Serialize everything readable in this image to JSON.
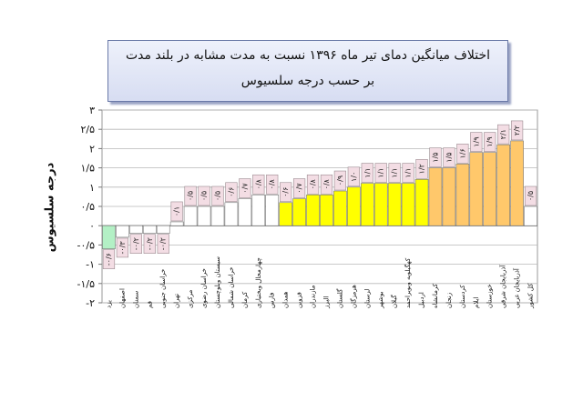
{
  "chart_data": {
    "type": "bar",
    "title": "اختلاف میانگین دمای تیر ماه ۱۳۹۶ نسبت به مدت مشابه در بلند مدت",
    "subtitle": "بر حسب درجه سلسیوس",
    "ylabel": "درجه سلسیوس",
    "xlabel": "",
    "ylim": [
      -2,
      3
    ],
    "y_ticks": [
      "-۲",
      "-۱/۵",
      "-۱",
      "-۰/۵",
      "۰",
      "۰/۵",
      "۱",
      "۱/۵",
      "۲",
      "۲/۵",
      "۳"
    ],
    "grid": true,
    "categories": [
      "یزد",
      "اصفهان",
      "سمنان",
      "قم",
      "خراسان جنوبی",
      "تهران",
      "مرکزی",
      "خراسان رضوی",
      "سیستان وبلوچستان",
      "خراسان شمالی",
      "کرمان",
      "چهارمحال وبختیاری",
      "فارس",
      "همدان",
      "قزوین",
      "مازندران",
      "البرز",
      "گلستان",
      "هرمزگان",
      "لرستان",
      "بوشهر",
      "گیلان",
      "کهگیلویه وبویراحمد",
      "اردبیل",
      "کرمانشاه",
      "زنجان",
      "کردستان",
      "ایلام",
      "خوزستان",
      "آذربایجان شرقی",
      "آذربایجان غربی",
      "کل کشور"
    ],
    "values": [
      -0.6,
      -0.3,
      -0.2,
      -0.2,
      -0.2,
      0.1,
      0.5,
      0.5,
      0.5,
      0.6,
      0.7,
      0.8,
      0.8,
      0.6,
      0.7,
      0.8,
      0.8,
      0.9,
      1.0,
      1.1,
      1.1,
      1.1,
      1.1,
      1.2,
      1.5,
      1.5,
      1.6,
      1.9,
      1.9,
      2.1,
      2.2,
      0.5
    ],
    "labels": [
      "-۰/۶",
      "-۰/۳",
      "-۰/۲",
      "-۰/۲",
      "-۰/۲",
      "۰/۱",
      "۰/۵",
      "۰/۵",
      "۰/۵",
      "۰/۶",
      "۰/۷",
      "۰/۸",
      "۰/۸",
      "۰/۶",
      "۰/۷",
      "۰/۸",
      "۰/۸",
      "۰/۹",
      "۱/۰",
      "۱/۱",
      "۱/۱",
      "۱/۱",
      "۱/۱",
      "۱/۲",
      "۱/۵",
      "۱/۵",
      "۱/۶",
      "۱/۹",
      "۱/۹",
      "۲/۱",
      "۲/۲",
      "۰/۵"
    ],
    "bar_groups": [
      "green",
      "white",
      "white",
      "white",
      "white",
      "white",
      "white",
      "white",
      "white",
      "white",
      "white",
      "white",
      "white",
      "yellow",
      "yellow",
      "yellow",
      "yellow",
      "yellow",
      "yellow",
      "yellow",
      "yellow",
      "yellow",
      "yellow",
      "yellow",
      "orange",
      "orange",
      "orange",
      "orange",
      "orange",
      "orange",
      "orange",
      "white"
    ],
    "colors": {
      "green": "#b3f0c5",
      "white": "#ffffff",
      "yellow": "#ffff00",
      "orange": "#ffc86b",
      "label_box": "#f3dde4",
      "title_box": "#dde2f4"
    }
  }
}
